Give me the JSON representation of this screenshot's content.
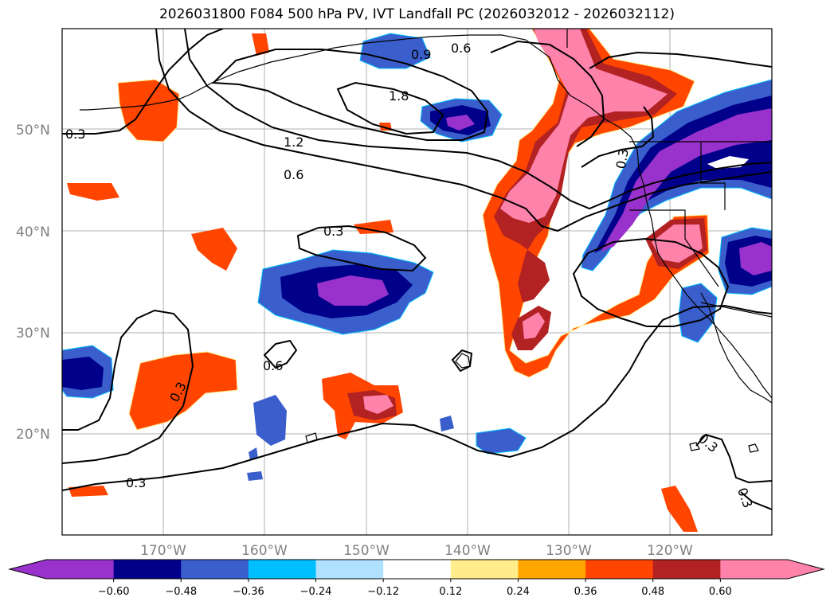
{
  "title": "2026031800 F084 500 hPa PV, IVT Landfall PC (2026032012 - 2026032112)",
  "map": {
    "lat_labels": [
      "50°N",
      "40°N",
      "30°N",
      "20°N"
    ],
    "lon_labels": [
      "170°W",
      "160°W",
      "150°W",
      "140°W",
      "130°W",
      "120°W"
    ],
    "contour_labels": [
      "0.3",
      "0.9",
      "0.6",
      "1.8",
      "1.2",
      "0.6",
      "0.3",
      "0.6",
      "0.3",
      "0.3",
      "0.3",
      "0.3",
      "0.3"
    ]
  },
  "colorbar": {
    "colors": [
      "#9932cc",
      "#00008b",
      "#3a5fcd",
      "#00bfff",
      "#b0e2ff",
      "#ffffff",
      "#ffec8b",
      "#ffa500",
      "#ff4500",
      "#b22222",
      "#ff82ab"
    ],
    "extend_min_color": "#9932cc",
    "extend_max_color": "#ff82ab",
    "tick_labels": [
      "−0.60",
      "−0.48",
      "−0.36",
      "−0.24",
      "−0.12",
      "0.12",
      "0.24",
      "0.36",
      "0.48",
      "0.60"
    ]
  }
}
